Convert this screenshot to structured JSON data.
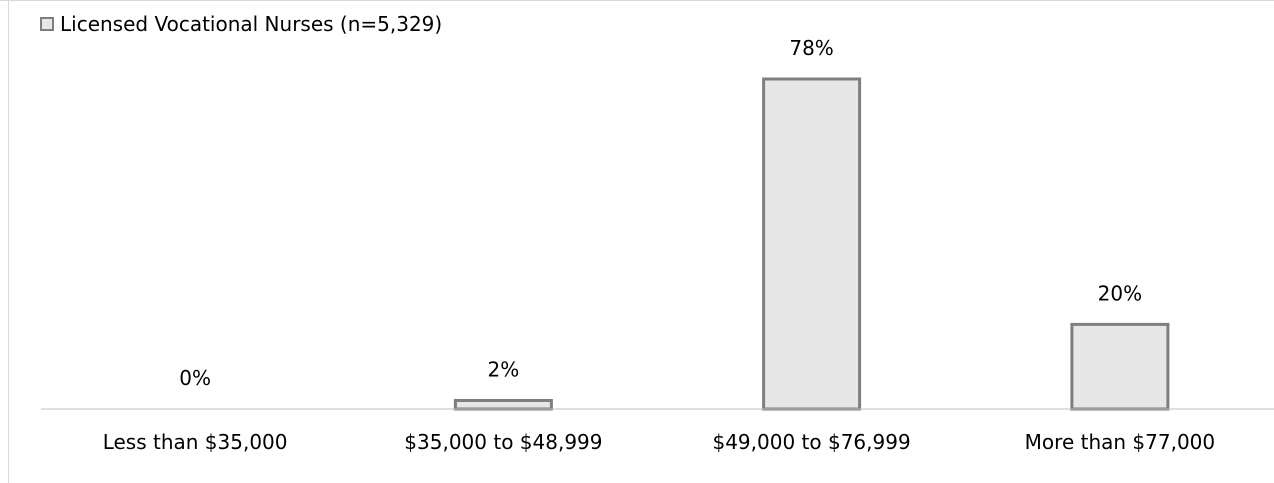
{
  "colors": {
    "bar_fill": "#e7e7e7",
    "bar_stroke": "#7f7f7f",
    "axis": "#bfbfbf"
  },
  "chart_data": {
    "type": "bar",
    "title": "",
    "xlabel": "",
    "ylabel": "",
    "categories": [
      "Less than $35,000",
      "$35,000 to $48,999",
      "$49,000 to $76,999",
      "More than $77,000"
    ],
    "series": [
      {
        "name": "Licensed Vocational Nurses (n=5,329)",
        "values": [
          0,
          2,
          78,
          20
        ],
        "labels": [
          "0%",
          "2%",
          "78%",
          "20%"
        ]
      }
    ],
    "ylim": [
      0,
      78
    ],
    "grid": false,
    "legend_position": "top-left"
  }
}
